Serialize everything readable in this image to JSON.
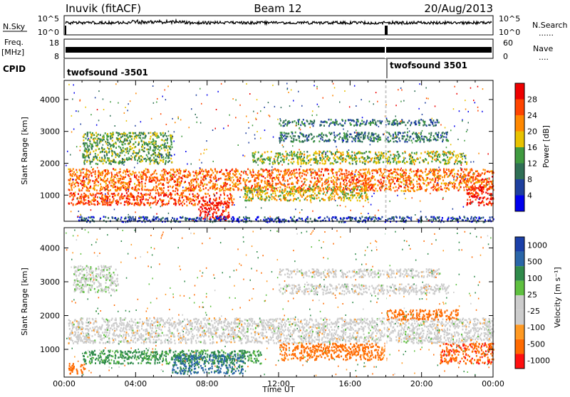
{
  "header": {
    "station": "Inuvik (fitACF)",
    "beam": "Beam 12",
    "date": "20/Aug/2013"
  },
  "left_labels": {
    "nsky": "N.Sky",
    "freq": "Freq.",
    "freq_unit": "[MHz]",
    "cpid": "CPID"
  },
  "right_labels": {
    "nsearch": "N.Search",
    "nave": "Nave",
    "dots": "......",
    "dots_short": "...."
  },
  "noise_panel": {
    "left_ticks": [
      "10^5",
      "10^0"
    ],
    "right_ticks": [
      "10^5",
      "10^0"
    ]
  },
  "freq_panel": {
    "left_ticks": [
      "18",
      "8"
    ],
    "right_ticks": [
      "60",
      "0"
    ]
  },
  "cpid_segments": [
    {
      "label": "twofsound -3501",
      "start_hour": 0
    },
    {
      "label": "twofsound 3501",
      "start_hour": 18
    }
  ],
  "colors": {
    "power_scale": [
      "#0000ee",
      "#1e3f9e",
      "#2f6f55",
      "#3f9a3f",
      "#e8c200",
      "#ff8800",
      "#ff4400",
      "#ee0000"
    ],
    "velocity_scale": [
      "#1a3fa8",
      "#2a66a8",
      "#2f8a4a",
      "#5fc040",
      "#cccccc",
      "#cccccc",
      "#ff9922",
      "#ff6a00",
      "#ff1010"
    ]
  },
  "chart_data": [
    {
      "type": "heatmap",
      "title": "",
      "quantity": "Power",
      "xlabel": "",
      "ylabel": "Slant Range [km]",
      "xlim": [
        0,
        24
      ],
      "ylim": [
        180,
        4600
      ],
      "yticks": [
        1000,
        2000,
        3000,
        4000
      ],
      "grid": false,
      "colorbar": {
        "label": "Power [dB]",
        "range": [
          0,
          32
        ],
        "ticks": [
          "4",
          "8",
          "12",
          "16",
          "20",
          "24",
          "28"
        ]
      },
      "bands": [
        {
          "start_hour": 0.2,
          "end_hour": 24,
          "range_min_km": 1150,
          "range_max_km": 1850,
          "value": 24
        },
        {
          "start_hour": 0.2,
          "end_hour": 9.5,
          "range_min_km": 700,
          "range_max_km": 1100,
          "value": 26
        },
        {
          "start_hour": 7.5,
          "end_hour": 9.2,
          "range_min_km": 250,
          "range_max_km": 800,
          "value": 30
        },
        {
          "start_hour": 10,
          "end_hour": 17,
          "range_min_km": 850,
          "range_max_km": 1300,
          "value": 18
        },
        {
          "start_hour": 22.5,
          "end_hour": 24,
          "range_min_km": 700,
          "range_max_km": 1300,
          "value": 28
        },
        {
          "start_hour": 10.5,
          "end_hour": 22.5,
          "range_min_km": 2000,
          "range_max_km": 2400,
          "value": 16
        },
        {
          "start_hour": 12,
          "end_hour": 21,
          "range_min_km": 3200,
          "range_max_km": 3400,
          "value": 10
        },
        {
          "start_hour": 12,
          "end_hour": 21.5,
          "range_min_km": 2700,
          "range_max_km": 3000,
          "value": 10
        },
        {
          "start_hour": 1,
          "end_hour": 6,
          "range_min_km": 2000,
          "range_max_km": 3000,
          "value": 14
        },
        {
          "start_hour": 0.5,
          "end_hour": 24,
          "range_min_km": 180,
          "range_max_km": 350,
          "value": 6
        }
      ]
    },
    {
      "type": "heatmap",
      "title": "",
      "quantity": "Velocity",
      "xlabel": "Time UT",
      "ylabel": "Slant Range [km]",
      "xlim": [
        0,
        24
      ],
      "ylim": [
        180,
        4600
      ],
      "xticks": [
        "00:00",
        "04:00",
        "08:00",
        "12:00",
        "16:00",
        "20:00",
        "00:00"
      ],
      "yticks": [
        1000,
        2000,
        3000,
        4000
      ],
      "grid": false,
      "colorbar": {
        "label": "Velocity [m s⁻¹]",
        "ticks": [
          "1000",
          "500",
          "100",
          "25",
          "-25",
          "-100",
          "-500",
          "-1000"
        ]
      },
      "bands": [
        {
          "start_hour": 0.2,
          "end_hour": 24,
          "range_min_km": 1200,
          "range_max_km": 1950,
          "value": 0
        },
        {
          "start_hour": 1,
          "end_hour": 11,
          "range_min_km": 600,
          "range_max_km": 1000,
          "value": 150
        },
        {
          "start_hour": 6,
          "end_hour": 10,
          "range_min_km": 300,
          "range_max_km": 900,
          "value": 600
        },
        {
          "start_hour": 12,
          "end_hour": 18,
          "range_min_km": 700,
          "range_max_km": 1200,
          "value": -200
        },
        {
          "start_hour": 18,
          "end_hour": 22,
          "range_min_km": 1900,
          "range_max_km": 2200,
          "value": -300
        },
        {
          "start_hour": 21,
          "end_hour": 24,
          "range_min_km": 600,
          "range_max_km": 1200,
          "value": -400
        },
        {
          "start_hour": 12,
          "end_hour": 21.5,
          "range_min_km": 2650,
          "range_max_km": 2950,
          "value": 0
        },
        {
          "start_hour": 12,
          "end_hour": 21,
          "range_min_km": 3150,
          "range_max_km": 3400,
          "value": 0
        },
        {
          "start_hour": 0.5,
          "end_hour": 3,
          "range_min_km": 2700,
          "range_max_km": 3500,
          "value": 10
        },
        {
          "start_hour": 0.2,
          "end_hour": 1.2,
          "range_min_km": 300,
          "range_max_km": 600,
          "value": -300
        }
      ]
    }
  ]
}
